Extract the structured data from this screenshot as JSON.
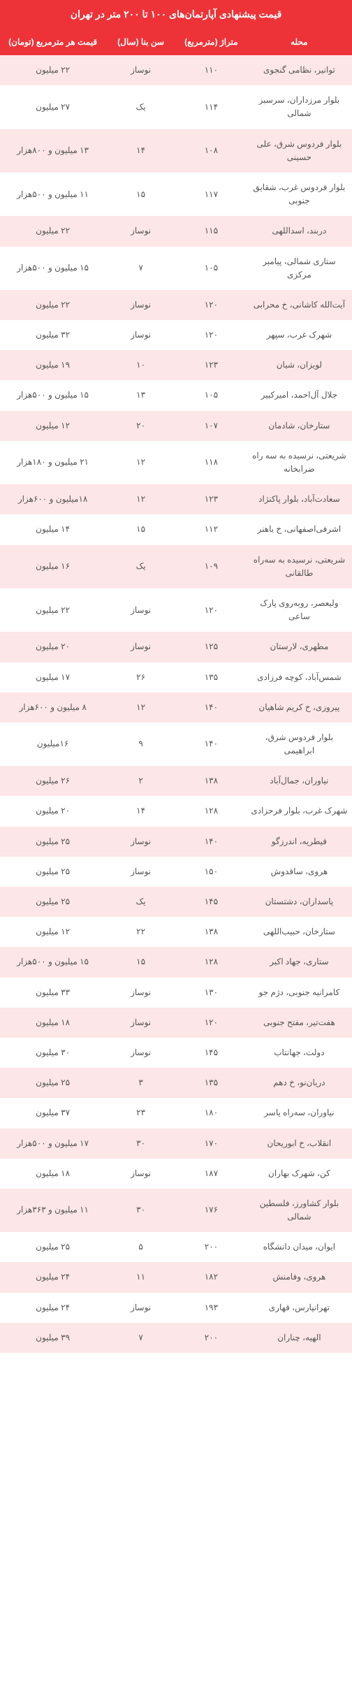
{
  "title": "قیمت پیشنهادی آپارتمان‌های ۱۰۰ تا ۲۰۰ متر در تهران",
  "columns": {
    "neighborhood": "محله",
    "area": "متراژ (مترمربع)",
    "age": "سن بنا (سال)",
    "price": "قیمت هر مترمربع (تومان)"
  },
  "colors": {
    "header_bg": "#ed3338",
    "header_text": "#ffffff",
    "row_odd_bg": "#fde6e7",
    "row_even_bg": "#ffffff",
    "cell_text": "#555555"
  },
  "rows": [
    {
      "neighborhood": "توانیر، نظامی گنجوی",
      "area": "۱۱۰",
      "age": "نوساز",
      "price": "۲۲ میلیون"
    },
    {
      "neighborhood": "بلوار مرزداران، سرسبز شمالی",
      "area": "۱۱۴",
      "age": "یک",
      "price": "۲۷ میلیون"
    },
    {
      "neighborhood": "بلوار فردوس شرق، علی حسینی",
      "area": "۱۰۸",
      "age": "۱۴",
      "price": "۱۳ میلیون و ۸۰۰هزار"
    },
    {
      "neighborhood": "بلوار فردوس غرب، شقایق جنوبی",
      "area": "۱۱۷",
      "age": "۱۵",
      "price": "۱۱ میلیون و ۵۰۰هزار"
    },
    {
      "neighborhood": "دربند، اسداللهی",
      "area": "۱۱۵",
      "age": "نوساز",
      "price": "۲۲ میلیون"
    },
    {
      "neighborhood": "ستاری شمالی، پیامبر مرکزی",
      "area": "۱۰۵",
      "age": "۷",
      "price": "۱۵ میلیون و ۵۰۰هزار"
    },
    {
      "neighborhood": "آیت‌الله کاشانی، خ محرابی",
      "area": "۱۲۰",
      "age": "نوساز",
      "price": "۲۲ میلیون"
    },
    {
      "neighborhood": "شهرک غرب، سپهر",
      "area": "۱۲۰",
      "age": "نوساز",
      "price": "۳۲ میلیون"
    },
    {
      "neighborhood": "لویزان، شیان",
      "area": "۱۲۳",
      "age": "۱۰",
      "price": "۱۹ میلیون"
    },
    {
      "neighborhood": "جلال آل‌احمد، امیرکبیر",
      "area": "۱۰۵",
      "age": "۱۳",
      "price": "۱۵ میلیون و ۵۰۰هزار"
    },
    {
      "neighborhood": "ستارخان، شادمان",
      "area": "۱۰۷",
      "age": "۲۰",
      "price": "۱۲ میلیون"
    },
    {
      "neighborhood": "شریعتی، نرسیده به سه راه ضرابخانه",
      "area": "۱۱۸",
      "age": "۱۲",
      "price": "۲۱ میلیون و ۱۸۰هزار"
    },
    {
      "neighborhood": "سعادت‌آباد، بلوار پاکنژاد",
      "area": "۱۲۳",
      "age": "۱۲",
      "price": "۱۸میلیون و ۶۰۰هزار"
    },
    {
      "neighborhood": "اشرفی‌اصفهانی، خ باهنر",
      "area": "۱۱۲",
      "age": "۱۵",
      "price": "۱۴ میلیون"
    },
    {
      "neighborhood": "شریعتی، نرسیده به سه‌راه طالقانی",
      "area": "۱۰۹",
      "age": "یک",
      "price": "۱۶ میلیون"
    },
    {
      "neighborhood": "ولیعصر، روبه‌روی پارک ساعی",
      "area": "۱۲۰",
      "age": "نوساز",
      "price": "۲۲ میلیون"
    },
    {
      "neighborhood": "مطهری، لارستان",
      "area": "۱۲۵",
      "age": "نوساز",
      "price": "۲۰ میلیون"
    },
    {
      "neighborhood": "شمس‌آباد، کوچه فرزادی",
      "area": "۱۳۵",
      "age": "۲۶",
      "price": "۱۷ میلیون"
    },
    {
      "neighborhood": "پیروزی، خ کریم شاهیان",
      "area": "۱۴۰",
      "age": "۱۲",
      "price": "۸ میلیون و ۶۰۰هزار"
    },
    {
      "neighborhood": "بلوار فردوس شرق، ابراهیمی",
      "area": "۱۴۰",
      "age": "۹",
      "price": "۱۶میلیون"
    },
    {
      "neighborhood": "نیاوران، جمال‌آباد",
      "area": "۱۳۸",
      "age": "۲",
      "price": "۲۶ میلیون"
    },
    {
      "neighborhood": "شهرک غرب، بلوار فرحزادی",
      "area": "۱۲۸",
      "age": "۱۴",
      "price": "۲۰ میلیون"
    },
    {
      "neighborhood": "قیطریه، اندرزگو",
      "area": "۱۴۰",
      "age": "نوساز",
      "price": "۲۵ میلیون"
    },
    {
      "neighborhood": "هروی، ساقدوش",
      "area": "۱۵۰",
      "age": "نوساز",
      "price": "۲۵ میلیون"
    },
    {
      "neighborhood": "پاسداران، دشتستان",
      "area": "۱۴۵",
      "age": "یک",
      "price": "۲۵ میلیون"
    },
    {
      "neighborhood": "ستارخان، حبیب‌اللهی",
      "area": "۱۳۸",
      "age": "۲۲",
      "price": "۱۲ میلیون"
    },
    {
      "neighborhood": "ستاری، جهاد اکبر",
      "area": "۱۲۸",
      "age": "۱۵",
      "price": "۱۵ میلیون و ۵۰۰هزار"
    },
    {
      "neighborhood": "کامرانیه جنوبی، دژم جو",
      "area": "۱۳۰",
      "age": "نوساز",
      "price": "۳۳ میلیون"
    },
    {
      "neighborhood": "هفت‌تیر، مفتح جنوبی",
      "area": "۱۲۰",
      "age": "نوساز",
      "price": "۱۸ میلیون"
    },
    {
      "neighborhood": "دولت، جهانتاب",
      "area": "۱۴۵",
      "age": "نوساز",
      "price": "۳۰ میلیون"
    },
    {
      "neighborhood": "دریان‌نو، خ دهم",
      "area": "۱۳۵",
      "age": "۳",
      "price": "۲۵ میلیون"
    },
    {
      "neighborhood": "نیاوران، سه‌راه یاسر",
      "area": "۱۸۰",
      "age": "۲۳",
      "price": "۳۷ میلیون"
    },
    {
      "neighborhood": "انقلاب، خ ابوریحان",
      "area": "۱۷۰",
      "age": "۳۰",
      "price": "۱۷ میلیون و ۵۰۰هزار"
    },
    {
      "neighborhood": "کن، شهرک بهاران",
      "area": "۱۸۷",
      "age": "نوساز",
      "price": "۱۸ میلیون"
    },
    {
      "neighborhood": "بلوار کشاورز، فلسطین شمالی",
      "area": "۱۷۶",
      "age": "۳۰",
      "price": "۱۱ میلیون و ۳۶۳هزار"
    },
    {
      "neighborhood": "ایوان، میدان دانشگاه",
      "area": "۲۰۰",
      "age": "۵",
      "price": "۲۵ میلیون"
    },
    {
      "neighborhood": "هروی، وفامنش",
      "area": "۱۸۲",
      "age": "۱۱",
      "price": "۲۴ میلیون"
    },
    {
      "neighborhood": "تهرانپارس، قهاری",
      "area": "۱۹۳",
      "age": "نوساز",
      "price": "۲۴ میلیون"
    },
    {
      "neighborhood": "الهیه، چناران",
      "area": "۲۰۰",
      "age": "۷",
      "price": "۳۹ میلیون"
    }
  ]
}
